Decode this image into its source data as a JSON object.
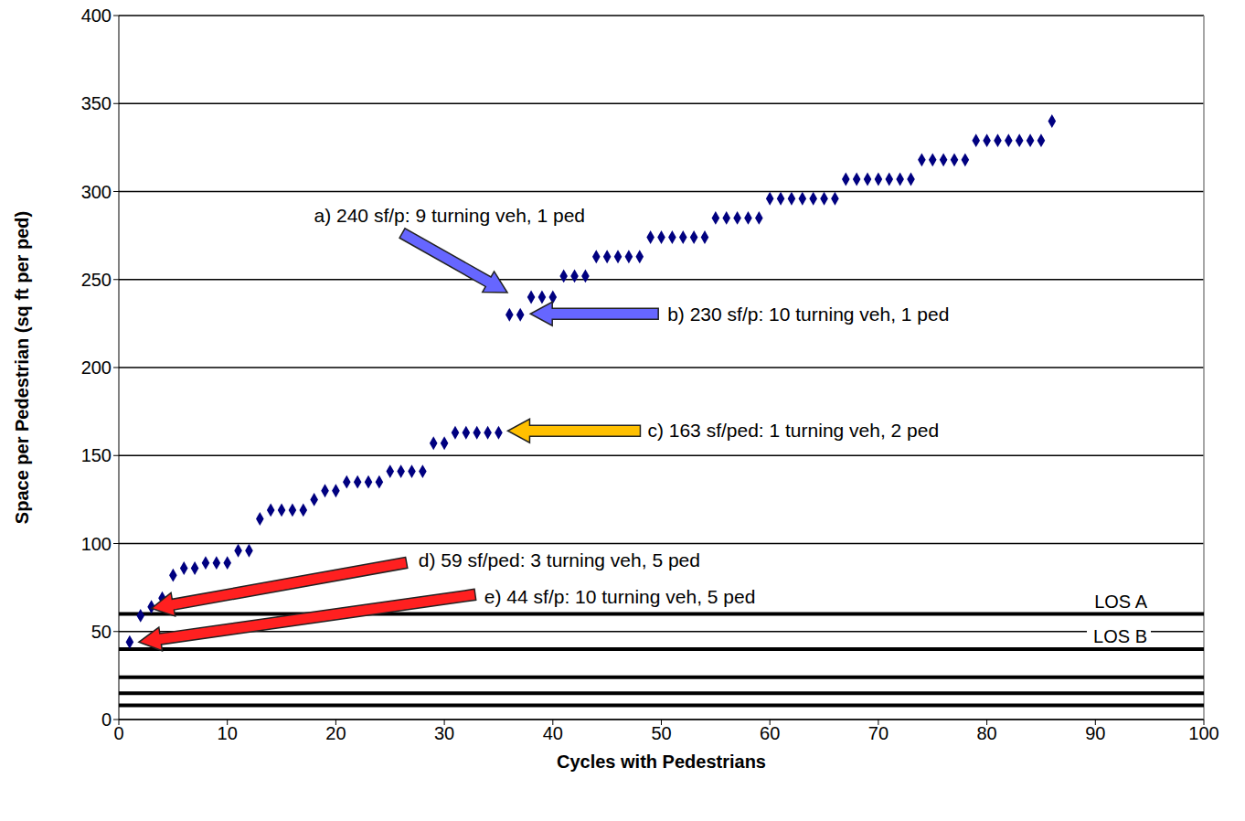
{
  "chart_data": {
    "type": "scatter",
    "xlabel": "Cycles with Pedestrians",
    "ylabel": "Space per Pedestrian (sq ft per ped)",
    "x": [
      1,
      2,
      3,
      4,
      5,
      6,
      7,
      8,
      9,
      10,
      11,
      12,
      13,
      14,
      15,
      16,
      17,
      18,
      19,
      20,
      21,
      22,
      23,
      24,
      25,
      26,
      27,
      28,
      29,
      30,
      31,
      32,
      33,
      34,
      35,
      36,
      37,
      38,
      39,
      40,
      41,
      42,
      43,
      44,
      45,
      46,
      47,
      48,
      49,
      50,
      51,
      52,
      53,
      54,
      55,
      56,
      57,
      58,
      59,
      60,
      61,
      62,
      63,
      64,
      65,
      66,
      67,
      68,
      69,
      70,
      71,
      72,
      73,
      74,
      75,
      76,
      77,
      78,
      79,
      80,
      81,
      82,
      83,
      84,
      85,
      86
    ],
    "values": [
      44,
      59,
      64,
      69,
      82,
      86,
      86,
      89,
      89,
      89,
      96,
      96,
      114,
      119,
      119,
      119,
      119,
      125,
      130,
      130,
      135,
      135,
      135,
      135,
      141,
      141,
      141,
      141,
      157,
      157,
      163,
      163,
      163,
      163,
      163,
      230,
      230,
      240,
      240,
      240,
      252,
      252,
      252,
      263,
      263,
      263,
      263,
      263,
      274,
      274,
      274,
      274,
      274,
      274,
      285,
      285,
      285,
      285,
      285,
      296,
      296,
      296,
      296,
      296,
      296,
      296,
      307,
      307,
      307,
      307,
      307,
      307,
      307,
      318,
      318,
      318,
      318,
      318,
      329,
      329,
      329,
      329,
      329,
      329,
      329,
      340
    ],
    "color": "#000080",
    "marker": "diamond",
    "xlim": [
      0,
      100
    ],
    "xticks": [
      0,
      10,
      20,
      30,
      40,
      50,
      60,
      70,
      80,
      90,
      100
    ],
    "ylim": [
      0,
      400
    ],
    "yticks": [
      0,
      50,
      100,
      150,
      200,
      250,
      300,
      350,
      400
    ],
    "grid": true,
    "reference_lines": [
      {
        "value": 60,
        "label": "LOS A"
      },
      {
        "value": 40,
        "label": "LOS B"
      },
      {
        "value": 24
      },
      {
        "value": 15
      },
      {
        "value": 8
      }
    ],
    "annotations": [
      {
        "text": "a) 240 sf/p: 9 turning veh, 1 ped",
        "x": 38,
        "y": 240,
        "color": "#6666ff"
      },
      {
        "text": "b) 230 sf/p: 10 turning veh, 1 ped",
        "x": 37,
        "y": 230,
        "color": "#6666ff"
      },
      {
        "text": "c) 163 sf/ped: 1 turning veh, 2 ped",
        "x": 35,
        "y": 163,
        "color": "#ffc000"
      },
      {
        "text": "d) 59 sf/ped: 3 turning veh, 5 ped",
        "x": 2,
        "y": 59,
        "color": "#ff2020"
      },
      {
        "text": "e) 44 sf/p: 10 turning veh, 5 ped",
        "x": 1,
        "y": 44,
        "color": "#ff2020"
      }
    ]
  }
}
